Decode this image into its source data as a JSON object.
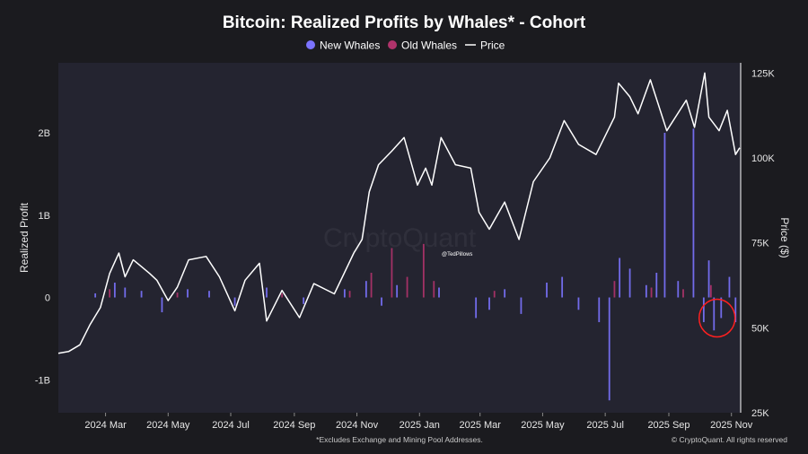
{
  "chart_data": {
    "type": "bar",
    "title": "Bitcoin: Realized Profits by Whales* - Cohort",
    "ylabel_left": "Realized Profit",
    "ylabel_right": "Price ($)",
    "y_left_range": [
      -1.4,
      2.85
    ],
    "y_left_ticks": [
      {
        "v": 2,
        "label": "2B"
      },
      {
        "v": 1,
        "label": "1B"
      },
      {
        "v": 0,
        "label": "0"
      },
      {
        "v": -1,
        "label": "-1B"
      }
    ],
    "y_right_range": [
      25000,
      128000
    ],
    "y_right_ticks": [
      {
        "v": 125000,
        "label": "125K"
      },
      {
        "v": 100000,
        "label": "100K"
      },
      {
        "v": 75000,
        "label": "75K"
      },
      {
        "v": 50000,
        "label": "50K"
      },
      {
        "v": 25000,
        "label": "25K"
      }
    ],
    "x_range": [
      "2024-01-15",
      "2025-11-10"
    ],
    "x_ticks": [
      {
        "date": "2024-03-01",
        "label": "2024 Mar"
      },
      {
        "date": "2024-05-01",
        "label": "2024 May"
      },
      {
        "date": "2024-07-01",
        "label": "2024 Jul"
      },
      {
        "date": "2024-09-01",
        "label": "2024 Sep"
      },
      {
        "date": "2024-11-01",
        "label": "2024 Nov"
      },
      {
        "date": "2025-01-01",
        "label": "2025 Jan"
      },
      {
        "date": "2025-03-01",
        "label": "2025 Mar"
      },
      {
        "date": "2025-05-01",
        "label": "2025 May"
      },
      {
        "date": "2025-07-01",
        "label": "2025 Jul"
      },
      {
        "date": "2025-09-01",
        "label": "2025 Sep"
      },
      {
        "date": "2025-11-01",
        "label": "2025 Nov"
      }
    ],
    "legend": [
      {
        "name": "New Whales",
        "color": "#7b73ff",
        "marker": "dot"
      },
      {
        "name": "Old Whales",
        "color": "#b1336b",
        "marker": "dot"
      },
      {
        "name": "Price",
        "color": "#ffffff",
        "marker": "line"
      }
    ],
    "legend_position": "top-center",
    "grid": false,
    "series": [
      {
        "name": "New Whales",
        "color": "#7b73ff",
        "axis": "left",
        "unit": "B",
        "points": [
          [
            "2024-02-20",
            0.05
          ],
          [
            "2024-03-10",
            0.18
          ],
          [
            "2024-03-20",
            0.12
          ],
          [
            "2024-04-05",
            0.08
          ],
          [
            "2024-04-25",
            -0.18
          ],
          [
            "2024-05-20",
            0.1
          ],
          [
            "2024-06-10",
            0.08
          ],
          [
            "2024-07-05",
            -0.1
          ],
          [
            "2024-08-05",
            0.12
          ],
          [
            "2024-09-10",
            -0.08
          ],
          [
            "2024-10-20",
            0.1
          ],
          [
            "2024-11-10",
            0.2
          ],
          [
            "2024-11-25",
            -0.1
          ],
          [
            "2024-12-10",
            0.15
          ],
          [
            "2025-01-20",
            0.12
          ],
          [
            "2025-02-25",
            -0.25
          ],
          [
            "2025-03-10",
            -0.15
          ],
          [
            "2025-03-25",
            0.1
          ],
          [
            "2025-04-10",
            -0.2
          ],
          [
            "2025-05-05",
            0.18
          ],
          [
            "2025-05-20",
            0.25
          ],
          [
            "2025-06-05",
            -0.15
          ],
          [
            "2025-06-25",
            -0.3
          ],
          [
            "2025-07-05",
            -1.25
          ],
          [
            "2025-07-15",
            0.48
          ],
          [
            "2025-07-25",
            0.35
          ],
          [
            "2025-08-10",
            0.15
          ],
          [
            "2025-08-20",
            0.3
          ],
          [
            "2025-08-28",
            2.0
          ],
          [
            "2025-09-10",
            0.2
          ],
          [
            "2025-09-25",
            2.05
          ],
          [
            "2025-10-05",
            -0.3
          ],
          [
            "2025-10-10",
            0.45
          ],
          [
            "2025-10-15",
            -0.4
          ],
          [
            "2025-10-22",
            -0.25
          ],
          [
            "2025-10-30",
            0.25
          ],
          [
            "2025-11-05",
            -0.3
          ]
        ]
      },
      {
        "name": "Old Whales",
        "color": "#b1336b",
        "axis": "left",
        "unit": "B",
        "points": [
          [
            "2024-03-05",
            0.1
          ],
          [
            "2024-05-10",
            0.06
          ],
          [
            "2024-08-20",
            0.05
          ],
          [
            "2024-10-25",
            0.08
          ],
          [
            "2024-11-15",
            0.3
          ],
          [
            "2024-12-05",
            0.6
          ],
          [
            "2024-12-20",
            0.25
          ],
          [
            "2025-01-05",
            0.65
          ],
          [
            "2025-01-15",
            0.2
          ],
          [
            "2025-03-15",
            0.08
          ],
          [
            "2025-07-10",
            0.2
          ],
          [
            "2025-08-15",
            0.12
          ],
          [
            "2025-09-15",
            0.1
          ],
          [
            "2025-10-12",
            0.15
          ]
        ]
      },
      {
        "name": "Price",
        "color": "#ffffff",
        "axis": "right",
        "unit": "$",
        "points": [
          [
            "2024-01-15",
            42500
          ],
          [
            "2024-01-25",
            43000
          ],
          [
            "2024-02-05",
            45000
          ],
          [
            "2024-02-15",
            51000
          ],
          [
            "2024-02-25",
            56000
          ],
          [
            "2024-03-05",
            66000
          ],
          [
            "2024-03-14",
            72000
          ],
          [
            "2024-03-20",
            65000
          ],
          [
            "2024-03-28",
            70000
          ],
          [
            "2024-04-05",
            68000
          ],
          [
            "2024-04-13",
            66000
          ],
          [
            "2024-04-20",
            64000
          ],
          [
            "2024-05-01",
            58000
          ],
          [
            "2024-05-10",
            62000
          ],
          [
            "2024-05-21",
            70000
          ],
          [
            "2024-06-07",
            71000
          ],
          [
            "2024-06-20",
            65000
          ],
          [
            "2024-07-05",
            55000
          ],
          [
            "2024-07-15",
            64000
          ],
          [
            "2024-07-29",
            69000
          ],
          [
            "2024-08-05",
            52000
          ],
          [
            "2024-08-20",
            61000
          ],
          [
            "2024-09-06",
            53000
          ],
          [
            "2024-09-20",
            63000
          ],
          [
            "2024-10-10",
            60000
          ],
          [
            "2024-10-29",
            72000
          ],
          [
            "2024-11-06",
            76000
          ],
          [
            "2024-11-13",
            90000
          ],
          [
            "2024-11-22",
            98000
          ],
          [
            "2024-12-05",
            102000
          ],
          [
            "2024-12-17",
            106000
          ],
          [
            "2024-12-30",
            92000
          ],
          [
            "2025-01-07",
            97000
          ],
          [
            "2025-01-13",
            92000
          ],
          [
            "2025-01-22",
            106000
          ],
          [
            "2025-02-05",
            98000
          ],
          [
            "2025-02-20",
            97000
          ],
          [
            "2025-02-28",
            84000
          ],
          [
            "2025-03-10",
            79000
          ],
          [
            "2025-03-25",
            87000
          ],
          [
            "2025-04-08",
            76000
          ],
          [
            "2025-04-22",
            93000
          ],
          [
            "2025-05-08",
            100000
          ],
          [
            "2025-05-22",
            111000
          ],
          [
            "2025-06-05",
            104000
          ],
          [
            "2025-06-22",
            101000
          ],
          [
            "2025-07-10",
            112000
          ],
          [
            "2025-07-14",
            122000
          ],
          [
            "2025-07-25",
            118000
          ],
          [
            "2025-08-02",
            113000
          ],
          [
            "2025-08-14",
            123000
          ],
          [
            "2025-08-30",
            108000
          ],
          [
            "2025-09-18",
            117000
          ],
          [
            "2025-09-26",
            109000
          ],
          [
            "2025-10-06",
            125000
          ],
          [
            "2025-10-10",
            112000
          ],
          [
            "2025-10-20",
            108000
          ],
          [
            "2025-10-28",
            114000
          ],
          [
            "2025-11-05",
            101000
          ],
          [
            "2025-11-09",
            103000
          ]
        ]
      }
    ],
    "annotations": {
      "watermark": "CryptoQuant",
      "handle": "@TedPillows",
      "highlight": {
        "type": "circle",
        "color": "#ff2020",
        "date": "2025-10-18",
        "value": -0.25
      }
    }
  },
  "footer": {
    "note": "*Excludes Exchange and Mining Pool Addresses.",
    "copyright": "© CryptoQuant. All rights reserved"
  }
}
